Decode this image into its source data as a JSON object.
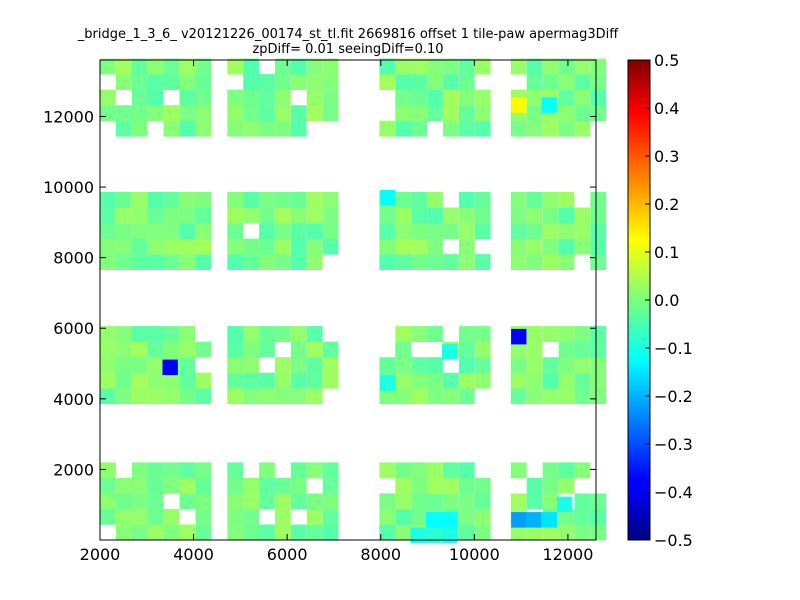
{
  "chart_data": {
    "type": "heatmap",
    "title_line1": "_bridge_1_3_6_ v20121226_00174_st_tl.fit 2669816 offset 1 tile-paw apermag3Diff",
    "title_line2": "zpDiff= 0.01 seeingDiff=0.10",
    "xlabel": "",
    "ylabel": "",
    "xlim": [
      2000,
      12600
    ],
    "ylim": [
      0,
      13600
    ],
    "x_ticks": [
      2000,
      4000,
      6000,
      8000,
      10000,
      12000
    ],
    "y_ticks": [
      2000,
      4000,
      6000,
      8000,
      10000,
      12000
    ],
    "colorbar": {
      "colormap": "jet",
      "vmin": -0.5,
      "vmax": 0.5,
      "ticks": [
        -0.5,
        -0.4,
        -0.3,
        -0.2,
        -0.1,
        0.0,
        0.1,
        0.2,
        0.3,
        0.4,
        0.5
      ]
    },
    "cell_size": [
      330,
      440
    ],
    "notable_cells": [
      {
        "x": 10950,
        "y": 12320,
        "value": 0.13
      },
      {
        "x": 11600,
        "y": 12320,
        "value": -0.12
      },
      {
        "x": 8150,
        "y": 9700,
        "value": -0.12
      },
      {
        "x": 10950,
        "y": 5760,
        "value": -0.38
      },
      {
        "x": 3500,
        "y": 4890,
        "value": -0.38
      },
      {
        "x": 8150,
        "y": 4450,
        "value": -0.1
      },
      {
        "x": 9470,
        "y": 5330,
        "value": -0.1
      },
      {
        "x": 9130,
        "y": 570,
        "value": -0.12
      },
      {
        "x": 9470,
        "y": 570,
        "value": -0.12
      },
      {
        "x": 9470,
        "y": 130,
        "value": -0.1
      },
      {
        "x": 8800,
        "y": 130,
        "value": -0.1
      },
      {
        "x": 9130,
        "y": 130,
        "value": -0.08
      },
      {
        "x": 10950,
        "y": 570,
        "value": -0.22
      },
      {
        "x": 11270,
        "y": 570,
        "value": -0.2
      },
      {
        "x": 11600,
        "y": 570,
        "value": -0.15
      },
      {
        "x": 11930,
        "y": 1010,
        "value": -0.1
      }
    ]
  }
}
